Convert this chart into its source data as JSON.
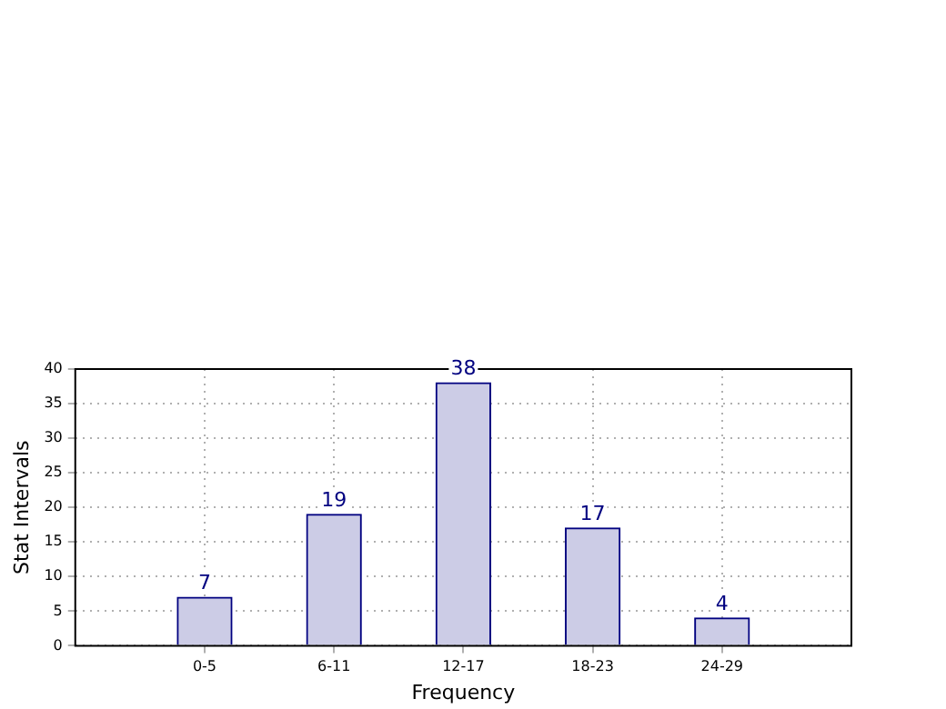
{
  "chart_data": {
    "type": "bar",
    "xlabel": "Frequency",
    "ylabel": "Stat Intervals",
    "categories": [
      "0-5",
      "6-11",
      "12-17",
      "18-23",
      "24-29"
    ],
    "values": [
      7,
      19,
      38,
      17,
      4
    ],
    "color": "#ccccE6",
    "ylim": [
      0,
      40
    ],
    "yticks": [
      0,
      5,
      10,
      15,
      20,
      25,
      30,
      35,
      40
    ],
    "grid": true,
    "data_labels": true
  }
}
